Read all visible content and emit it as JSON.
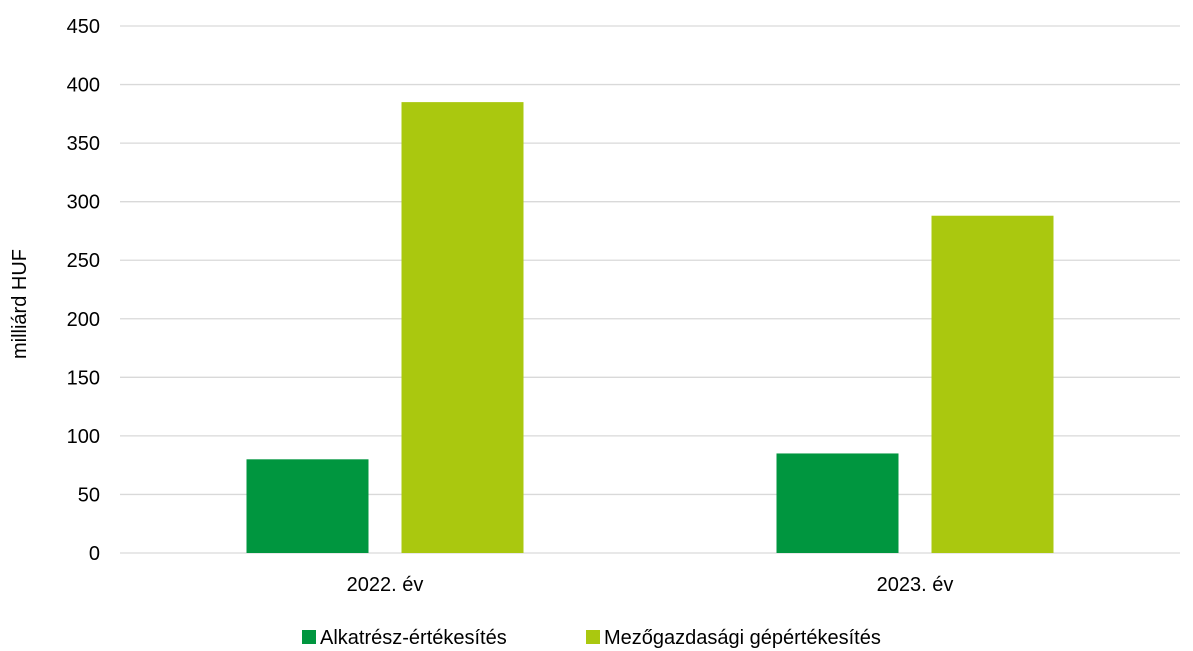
{
  "chart_data": {
    "type": "bar",
    "title": "",
    "xlabel": "",
    "ylabel": "milliárd HUF",
    "categories": [
      "2022. év",
      "2023. év"
    ],
    "series": [
      {
        "name": "Alkatrész-értékesítés",
        "color": "#00963f",
        "values": [
          80,
          85
        ]
      },
      {
        "name": "Mezőgazdasági gépértékesítés",
        "color": "#aac80f",
        "values": [
          385,
          288
        ]
      }
    ],
    "ylim": [
      0,
      450
    ],
    "yticks": [
      0,
      50,
      100,
      150,
      200,
      250,
      300,
      350,
      400,
      450
    ],
    "grid": true,
    "legend_position": "bottom"
  }
}
